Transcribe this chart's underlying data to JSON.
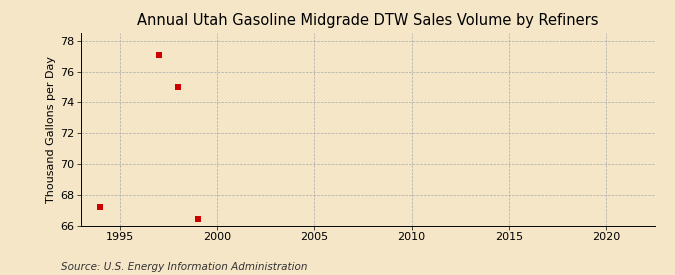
{
  "title": "Annual Utah Gasoline Midgrade DTW Sales Volume by Refiners",
  "ylabel": "Thousand Gallons per Day",
  "source": "Source: U.S. Energy Information Administration",
  "background_color": "#f5e6c8",
  "plot_bg_color": "#f5e6c8",
  "data_x": [
    1994,
    1997,
    1998,
    1999
  ],
  "data_y": [
    67.2,
    77.1,
    75.0,
    66.4
  ],
  "marker_color": "#cc0000",
  "marker_size": 4,
  "xlim": [
    1993,
    2022.5
  ],
  "ylim": [
    66,
    78.5
  ],
  "xticks": [
    1995,
    2000,
    2005,
    2010,
    2015,
    2020
  ],
  "yticks": [
    66,
    68,
    70,
    72,
    74,
    76,
    78
  ],
  "grid_color": "#aaaaaa",
  "title_fontsize": 10.5,
  "ylabel_fontsize": 8,
  "tick_fontsize": 8,
  "source_fontsize": 7.5
}
